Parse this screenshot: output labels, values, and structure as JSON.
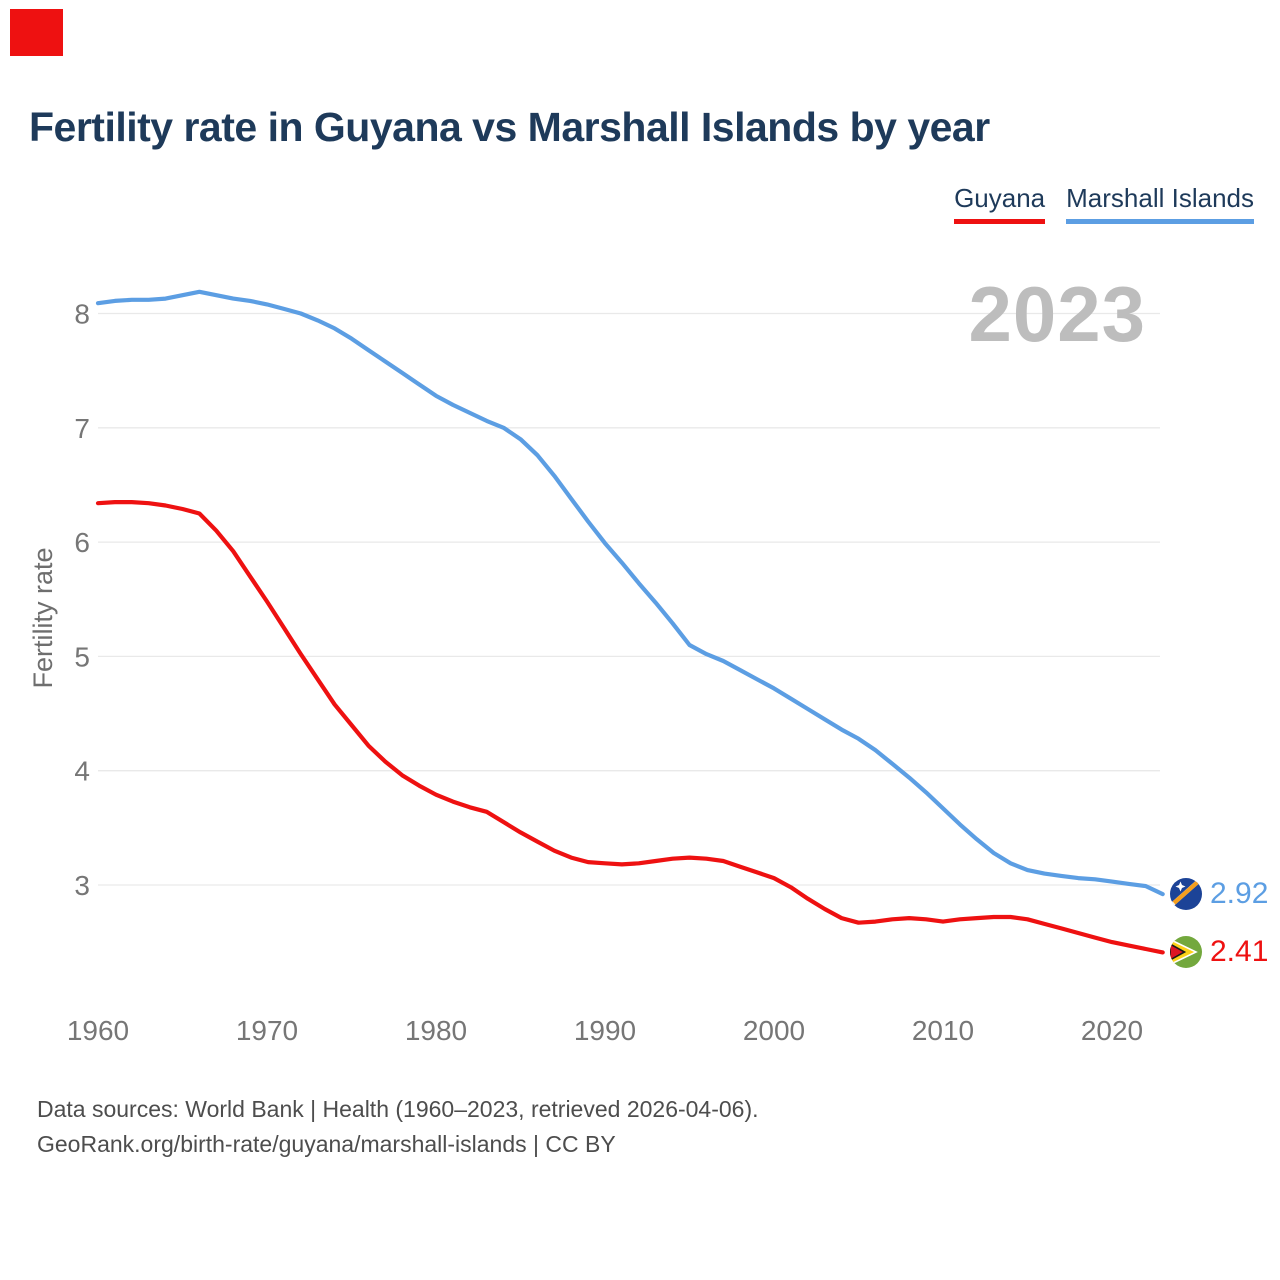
{
  "header": {
    "title": "Fertility rate in Guyana vs Marshall Islands by year"
  },
  "legend": {
    "guyana": {
      "label": "Guyana",
      "color": "#ee1111"
    },
    "marshall": {
      "label": "Marshall Islands",
      "color": "#5c9ee3"
    }
  },
  "watermark": "2023",
  "end_labels": {
    "marshall": {
      "value": "2.92",
      "color": "#5c9ee3",
      "icon": "marshall-islands-flag-icon"
    },
    "guyana": {
      "value": "2.41",
      "color": "#ee1111",
      "icon": "guyana-flag-icon"
    }
  },
  "footer": {
    "line1": "Data sources: World Bank | Health (1960–2023, retrieved 2026-04-06).",
    "line2": "GeoRank.org/birth-rate/guyana/marshall-islands | CC BY"
  },
  "colors": {
    "title_navy": "#1e3a5a",
    "guyana_red": "#ee1111",
    "marshall_blue": "#5c9ee3",
    "gridline": "#e9e9e9",
    "tick_gray": "#767676",
    "watermark_gray": "#bdbdbd",
    "footer_gray": "#4d4d4d",
    "marker_red": "#ee1111"
  },
  "chart_data": {
    "type": "line",
    "title": "Fertility rate in Guyana vs Marshall Islands by year",
    "xlabel": "",
    "ylabel": "Fertility rate",
    "grid": "horizontal",
    "legend_position": "top-right",
    "x_range": [
      1960,
      2023
    ],
    "ylim": [
      2.2,
      8.4
    ],
    "y_ticks": [
      8,
      7,
      6,
      5,
      4,
      3
    ],
    "x_ticks": [
      1960,
      1970,
      1980,
      1990,
      2000,
      2010,
      2020
    ],
    "x": [
      1960,
      1961,
      1962,
      1963,
      1964,
      1965,
      1966,
      1967,
      1968,
      1969,
      1970,
      1971,
      1972,
      1973,
      1974,
      1975,
      1976,
      1977,
      1978,
      1979,
      1980,
      1981,
      1982,
      1983,
      1984,
      1985,
      1986,
      1987,
      1988,
      1989,
      1990,
      1991,
      1992,
      1993,
      1994,
      1995,
      1996,
      1997,
      1998,
      1999,
      2000,
      2001,
      2002,
      2003,
      2004,
      2005,
      2006,
      2007,
      2008,
      2009,
      2010,
      2011,
      2012,
      2013,
      2014,
      2015,
      2016,
      2017,
      2018,
      2019,
      2020,
      2021,
      2022,
      2023
    ],
    "series": [
      {
        "name": "Marshall Islands",
        "color": "#5c9ee3",
        "final_value": 2.92,
        "values": [
          8.09,
          8.11,
          8.12,
          8.12,
          8.13,
          8.16,
          8.19,
          8.16,
          8.13,
          8.11,
          8.08,
          8.04,
          8.0,
          7.94,
          7.87,
          7.78,
          7.68,
          7.58,
          7.48,
          7.38,
          7.28,
          7.2,
          7.13,
          7.06,
          7.0,
          6.9,
          6.76,
          6.58,
          6.38,
          6.18,
          5.99,
          5.82,
          5.64,
          5.47,
          5.29,
          5.1,
          5.02,
          4.96,
          4.88,
          4.8,
          4.72,
          4.63,
          4.54,
          4.45,
          4.36,
          4.28,
          4.18,
          4.06,
          3.94,
          3.81,
          3.67,
          3.53,
          3.4,
          3.28,
          3.19,
          3.13,
          3.1,
          3.08,
          3.06,
          3.05,
          3.03,
          3.01,
          2.99,
          2.92
        ]
      },
      {
        "name": "Guyana",
        "color": "#ee1111",
        "final_value": 2.41,
        "values": [
          6.34,
          6.35,
          6.35,
          6.34,
          6.32,
          6.29,
          6.25,
          6.1,
          5.92,
          5.7,
          5.48,
          5.25,
          5.02,
          4.8,
          4.58,
          4.4,
          4.22,
          4.08,
          3.96,
          3.87,
          3.79,
          3.73,
          3.68,
          3.64,
          3.55,
          3.46,
          3.38,
          3.3,
          3.24,
          3.2,
          3.19,
          3.18,
          3.19,
          3.21,
          3.23,
          3.24,
          3.23,
          3.21,
          3.16,
          3.11,
          3.06,
          2.98,
          2.88,
          2.79,
          2.71,
          2.67,
          2.68,
          2.7,
          2.71,
          2.7,
          2.68,
          2.7,
          2.71,
          2.72,
          2.72,
          2.7,
          2.66,
          2.62,
          2.58,
          2.54,
          2.5,
          2.47,
          2.44,
          2.41
        ]
      }
    ]
  }
}
